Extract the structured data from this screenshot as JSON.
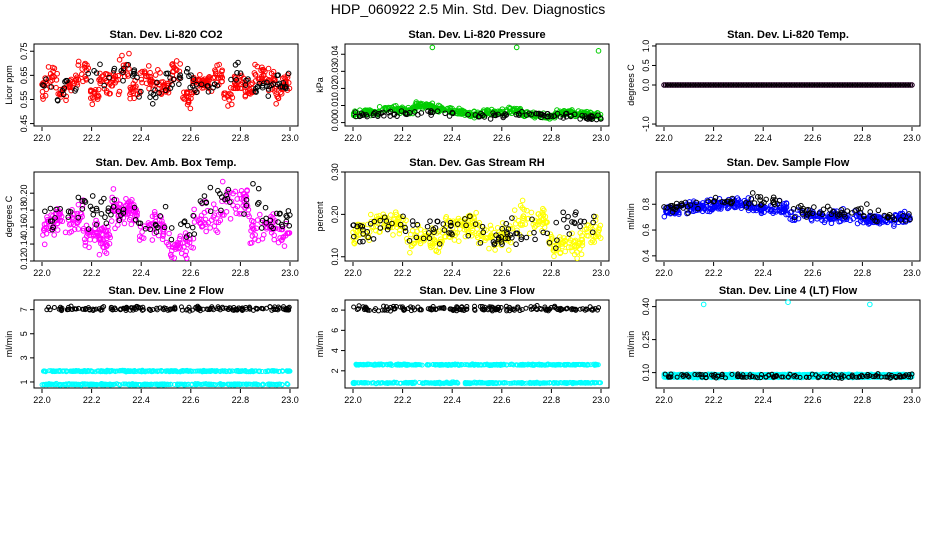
{
  "title": "HDP_060922  2.5 Min. Std. Dev. Diagnostics",
  "chart_data": [
    {
      "type": "scatter",
      "title": "Stan. Dev. Li-820 CO2",
      "xlabel": "",
      "ylabel": "Licor ppm",
      "xlim": [
        22.0,
        23.0
      ],
      "ylim": [
        0.44,
        0.78
      ],
      "xticks": [
        "22.0",
        "22.2",
        "22.4",
        "22.6",
        "22.8",
        "23.0"
      ],
      "yticks": [
        "0.45",
        "0.55",
        "0.65",
        "0.75"
      ],
      "ytick_values": [
        0.45,
        0.55,
        0.65,
        0.75
      ],
      "series": [
        {
          "color": "#ff0000",
          "values": [
            0.6,
            0.65,
            0.58,
            0.62,
            0.66,
            0.57,
            0.63,
            0.61,
            0.68,
            0.59,
            0.64,
            0.62,
            0.6,
            0.67,
            0.56,
            0.63,
            0.61,
            0.65,
            0.58,
            0.62,
            0.6,
            0.66,
            0.64,
            0.59,
            0.62
          ]
        },
        {
          "color": "#000000",
          "values": [
            0.6,
            0.58,
            0.64,
            0.66,
            0.57,
            0.63,
            0.59,
            0.65,
            0.61,
            0.62
          ]
        }
      ]
    },
    {
      "type": "scatter",
      "title": "Stan. Dev. Li-820 Pressure",
      "xlabel": "",
      "ylabel": "kPa",
      "xlim": [
        22.0,
        23.0
      ],
      "ylim": [
        -0.002,
        0.046
      ],
      "xticks": [
        "22.0",
        "22.2",
        "22.4",
        "22.6",
        "22.8",
        "23.0"
      ],
      "yticks": [
        "0.00",
        "0.01",
        "0.02",
        "0.03",
        "0.04"
      ],
      "ytick_values": [
        0.0,
        0.01,
        0.02,
        0.03,
        0.04
      ],
      "series": [
        {
          "color": "#00cc00",
          "values": [
            0.005,
            0.006,
            0.008,
            0.007,
            0.01,
            0.008,
            0.006,
            0.005,
            0.006,
            0.007,
            0.005,
            0.004,
            0.006,
            0.005,
            0.004
          ]
        },
        {
          "color": "#000000",
          "values": [
            0.004,
            0.005,
            0.006,
            0.005,
            0.004,
            0.005,
            0.004,
            0.003
          ]
        }
      ],
      "outliers": [
        [
          22.32,
          0.044
        ],
        [
          22.66,
          0.044
        ],
        [
          22.99,
          0.042
        ]
      ]
    },
    {
      "type": "scatter",
      "title": "Stan. Dev. Li-820 Temp.",
      "xlabel": "",
      "ylabel": "degrees C",
      "xlim": [
        22.0,
        23.0
      ],
      "ylim": [
        -1.05,
        1.05
      ],
      "xticks": [
        "22.0",
        "22.2",
        "22.4",
        "22.6",
        "22.8",
        "23.0"
      ],
      "yticks": [
        "-1.0",
        "0.0",
        "0.5",
        "1.0"
      ],
      "ytick_values": [
        -1.0,
        0.0,
        0.5,
        1.0
      ],
      "series": [
        {
          "color": "#ff00ff",
          "values": [
            0.0
          ]
        },
        {
          "color": "#000000",
          "values": [
            0.0
          ]
        }
      ]
    },
    {
      "type": "scatter",
      "title": "Stan. Dev. Amb. Box Temp.",
      "xlabel": "",
      "ylabel": "degrees C",
      "xlim": [
        22.0,
        23.0
      ],
      "ylim": [
        0.12,
        0.225
      ],
      "xticks": [
        "22.0",
        "22.2",
        "22.4",
        "22.6",
        "22.8",
        "23.0"
      ],
      "yticks": [
        "0.12",
        "0.14",
        "0.16",
        "0.18",
        "0.20"
      ],
      "ytick_values": [
        0.12,
        0.14,
        0.16,
        0.18,
        0.2
      ],
      "series": [
        {
          "color": "#ff00ff",
          "values": [
            0.16,
            0.17,
            0.15,
            0.18,
            0.16,
            0.14,
            0.17,
            0.19,
            0.16,
            0.15
          ]
        },
        {
          "color": "#000000",
          "values": [
            0.17,
            0.18,
            0.16,
            0.19,
            0.17
          ]
        }
      ]
    },
    {
      "type": "scatter",
      "title": "Stan. Dev. Gas Stream RH",
      "xlabel": "",
      "ylabel": "percent",
      "xlim": [
        22.0,
        23.0
      ],
      "ylim": [
        0.09,
        0.3
      ],
      "xticks": [
        "22.0",
        "22.2",
        "22.4",
        "22.6",
        "22.8",
        "23.0"
      ],
      "yticks": [
        "0.10",
        "0.20",
        "0.30"
      ],
      "ytick_values": [
        0.1,
        0.2,
        0.3
      ],
      "series": [
        {
          "color": "#ffff00",
          "values": [
            0.16,
            0.18,
            0.14,
            0.17,
            0.15,
            0.19,
            0.13,
            0.16
          ]
        },
        {
          "color": "#000000",
          "values": [
            0.16,
            0.17,
            0.15,
            0.18
          ]
        }
      ]
    },
    {
      "type": "scatter",
      "title": "Stan. Dev. Sample Flow",
      "xlabel": "",
      "ylabel": "ml/min",
      "xlim": [
        22.0,
        23.0
      ],
      "ylim": [
        0.36,
        1.05
      ],
      "xticks": [
        "22.0",
        "22.2",
        "22.4",
        "22.6",
        "22.8",
        "23.0"
      ],
      "yticks": [
        "0.4",
        "0.6",
        "0.8"
      ],
      "ytick_values": [
        0.4,
        0.6,
        0.8
      ],
      "series": [
        {
          "color": "#0000ff",
          "values": [
            0.75,
            0.78,
            0.8,
            0.77,
            0.72,
            0.7,
            0.68,
            0.7
          ]
        },
        {
          "color": "#000000",
          "values": [
            0.78,
            0.82,
            0.74,
            0.7
          ]
        }
      ]
    },
    {
      "type": "scatter",
      "title": "Stan. Dev. Line 2 Flow",
      "xlabel": "",
      "ylabel": "ml/min",
      "xlim": [
        22.0,
        23.0
      ],
      "ylim": [
        0.5,
        7.8
      ],
      "xticks": [
        "22.0",
        "22.2",
        "22.4",
        "22.6",
        "22.8",
        "23.0"
      ],
      "yticks": [
        "1",
        "3",
        "5",
        "7"
      ],
      "ytick_values": [
        1,
        3,
        5,
        7
      ],
      "series": [
        {
          "color": "#000000",
          "values": [
            7.0,
            7.1,
            7.2,
            7.0
          ]
        },
        {
          "color": "#00ffff",
          "values": [
            1.9,
            0.8
          ]
        }
      ]
    },
    {
      "type": "scatter",
      "title": "Stan. Dev. Line 3 Flow",
      "xlabel": "",
      "ylabel": "ml/min",
      "xlim": [
        22.0,
        23.0
      ],
      "ylim": [
        0.3,
        9.0
      ],
      "xticks": [
        "22.0",
        "22.2",
        "22.4",
        "22.6",
        "22.8",
        "23.0"
      ],
      "yticks": [
        "2",
        "4",
        "6",
        "8"
      ],
      "ytick_values": [
        2,
        4,
        6,
        8
      ],
      "series": [
        {
          "color": "#000000",
          "values": [
            8.0,
            8.1,
            8.3,
            8.1
          ]
        },
        {
          "color": "#00ffff",
          "values": [
            2.6,
            0.8
          ]
        }
      ]
    },
    {
      "type": "scatter",
      "title": "Stan. Dev. Line 4 (LT) Flow",
      "xlabel": "",
      "ylabel": "ml/min",
      "xlim": [
        22.0,
        23.0
      ],
      "ylim": [
        0.03,
        0.43
      ],
      "xticks": [
        "22.0",
        "22.2",
        "22.4",
        "22.6",
        "22.8",
        "23.0"
      ],
      "yticks": [
        "0.10",
        "0.25",
        "0.40"
      ],
      "ytick_values": [
        0.1,
        0.25,
        0.4
      ],
      "series": [
        {
          "color": "#00ffff",
          "values": [
            0.08,
            0.09,
            0.08,
            0.09
          ]
        },
        {
          "color": "#000000",
          "values": [
            0.08,
            0.09,
            0.08
          ]
        }
      ],
      "outliers": [
        [
          22.16,
          0.41
        ],
        [
          22.5,
          0.42
        ],
        [
          22.83,
          0.41
        ]
      ]
    }
  ]
}
